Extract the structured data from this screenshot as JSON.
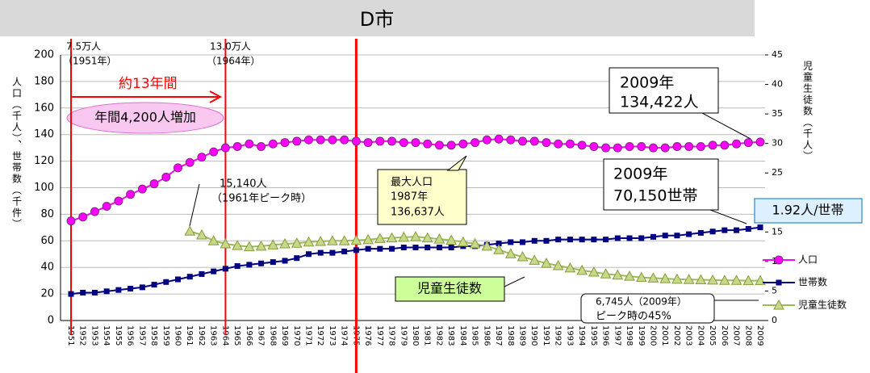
{
  "chart_data": {
    "type": "line",
    "title": "D市",
    "y_label": "人口（千人）、世帯数（千件）",
    "y2_label": "児童生徒数（千人）",
    "categories": [
      "1951",
      "1952",
      "1953",
      "1954",
      "1955",
      "1956",
      "1957",
      "1958",
      "1959",
      "1960",
      "1961",
      "1962",
      "1963",
      "1964",
      "1965",
      "1966",
      "1967",
      "1968",
      "1969",
      "1970",
      "1971",
      "1972",
      "1973",
      "1974",
      "1975",
      "1976",
      "1977",
      "1978",
      "1979",
      "1980",
      "1981",
      "1982",
      "1983",
      "1984",
      "1985",
      "1986",
      "1987",
      "1988",
      "1989",
      "1990",
      "1991",
      "1992",
      "1993",
      "1994",
      "1995",
      "1996",
      "1997",
      "1998",
      "1999",
      "2000",
      "2001",
      "2002",
      "2003",
      "2004",
      "2005",
      "2006",
      "2007",
      "2008",
      "2009"
    ],
    "series": [
      {
        "name": "人口",
        "color": "#ff00ff",
        "values": [
          75,
          78,
          82,
          86,
          90,
          95,
          99,
          103,
          108,
          115,
          119,
          123,
          127,
          130,
          131,
          133,
          131,
          133,
          134,
          135,
          136,
          136,
          136,
          136,
          135,
          134,
          135,
          135,
          134,
          134,
          133,
          132,
          132,
          133,
          134,
          136,
          136.637,
          136,
          135,
          135,
          134,
          133,
          133,
          132,
          131,
          130,
          130,
          131,
          131,
          130,
          130,
          131,
          131,
          131,
          132,
          132,
          133,
          134,
          134.422
        ]
      },
      {
        "name": "世帯数",
        "color": "#000080",
        "values": [
          20,
          21,
          21,
          22,
          23,
          24,
          25,
          27,
          29,
          31,
          33,
          35,
          37,
          39,
          41,
          42,
          43,
          44,
          45,
          47,
          50,
          51,
          51,
          52,
          53,
          54,
          54,
          54,
          55,
          55,
          55,
          55,
          55,
          56,
          56,
          57,
          58,
          59,
          59,
          60,
          60,
          61,
          61,
          61,
          61,
          61,
          62,
          62,
          62,
          63,
          64,
          64,
          65,
          66,
          67,
          68,
          68,
          69,
          70.15
        ]
      },
      {
        "name": "児童生徒数",
        "color": "#c4d98a",
        "axis": "y2",
        "values": [
          null,
          null,
          null,
          null,
          null,
          null,
          null,
          null,
          null,
          null,
          15.14,
          14.5,
          13.5,
          13.0,
          12.7,
          12.5,
          12.6,
          12.8,
          13.0,
          13.1,
          13.3,
          13.4,
          13.5,
          13.5,
          13.6,
          13.7,
          13.9,
          14.0,
          14.1,
          14.2,
          14.0,
          13.8,
          13.6,
          13.3,
          13.0,
          12.6,
          12.0,
          11.3,
          10.8,
          10.2,
          9.7,
          9.3,
          8.9,
          8.5,
          8.2,
          7.9,
          7.7,
          7.5,
          7.3,
          7.2,
          7.1,
          7.0,
          6.95,
          6.9,
          6.85,
          6.8,
          6.8,
          6.75,
          6.745
        ]
      }
    ],
    "ylim": [
      0,
      200
    ],
    "yticks": [
      0,
      20,
      40,
      60,
      80,
      100,
      120,
      140,
      160,
      180,
      200
    ],
    "y2lim": [
      0,
      45
    ],
    "y2ticks": [
      0,
      5,
      10,
      15,
      20,
      25,
      30,
      35,
      40,
      45
    ],
    "grid": true,
    "legend": "right",
    "annotations": [
      "7.5万人",
      "（1951年）",
      "13.0万人",
      "（1964年）",
      "約13年間",
      "年間4,200人増加",
      "15,140人",
      "（1961年ピーク時）",
      "最大人口",
      "1987年",
      "136,637人",
      "2009年",
      "134,422人",
      "2009年",
      "70,150世帯",
      "1.92人/世帯",
      "児童生徒数",
      "6,745人（2009年）",
      "ピーク時の45%"
    ]
  }
}
